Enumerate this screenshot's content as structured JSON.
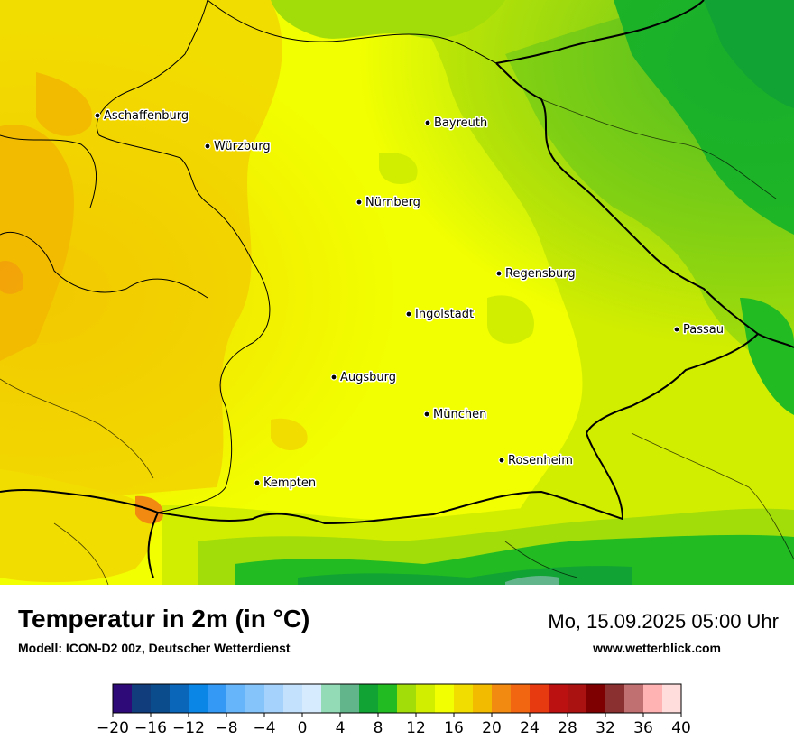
{
  "map": {
    "cities": [
      {
        "name": "Aschaffenburg"
      },
      {
        "name": "Würzburg"
      },
      {
        "name": "Bayreuth"
      },
      {
        "name": "Nürnberg"
      },
      {
        "name": "Regensburg"
      },
      {
        "name": "Ingolstadt"
      },
      {
        "name": "Passau"
      },
      {
        "name": "Augsburg"
      },
      {
        "name": "München"
      },
      {
        "name": "Rosenheim"
      },
      {
        "name": "Kempten"
      }
    ]
  },
  "footer": {
    "title": "Temperatur in 2m (in °C)",
    "model": "Modell: ICON-D2 00z, Deutscher Wetterdienst",
    "datetime": "Mo, 15.09.2025 05:00 Uhr",
    "website": "www.wetterblick.com"
  },
  "legend": {
    "ticks": [
      "−20",
      "−16",
      "−12",
      "−8",
      "−4",
      "0",
      "4",
      "8",
      "12",
      "16",
      "20",
      "24",
      "28",
      "32",
      "36",
      "40"
    ],
    "colors": [
      "#2d0a78",
      "#123d7c",
      "#0a4c8c",
      "#0a66b8",
      "#0a86e6",
      "#3399f5",
      "#66b5fa",
      "#85c4fb",
      "#a5d2fc",
      "#c3e0fd",
      "#d6ebfe",
      "#92dbb6",
      "#62b48a",
      "#11a333",
      "#22bb22",
      "#a2dd0a",
      "#d2ee00",
      "#f2ff00",
      "#f2dd00",
      "#f2bb00",
      "#f28a11",
      "#f26611",
      "#e83a11",
      "#bb1111",
      "#aa1111",
      "#7e0000",
      "#8a3030",
      "#c07070",
      "#ffb3b3",
      "#ffdddd"
    ]
  }
}
